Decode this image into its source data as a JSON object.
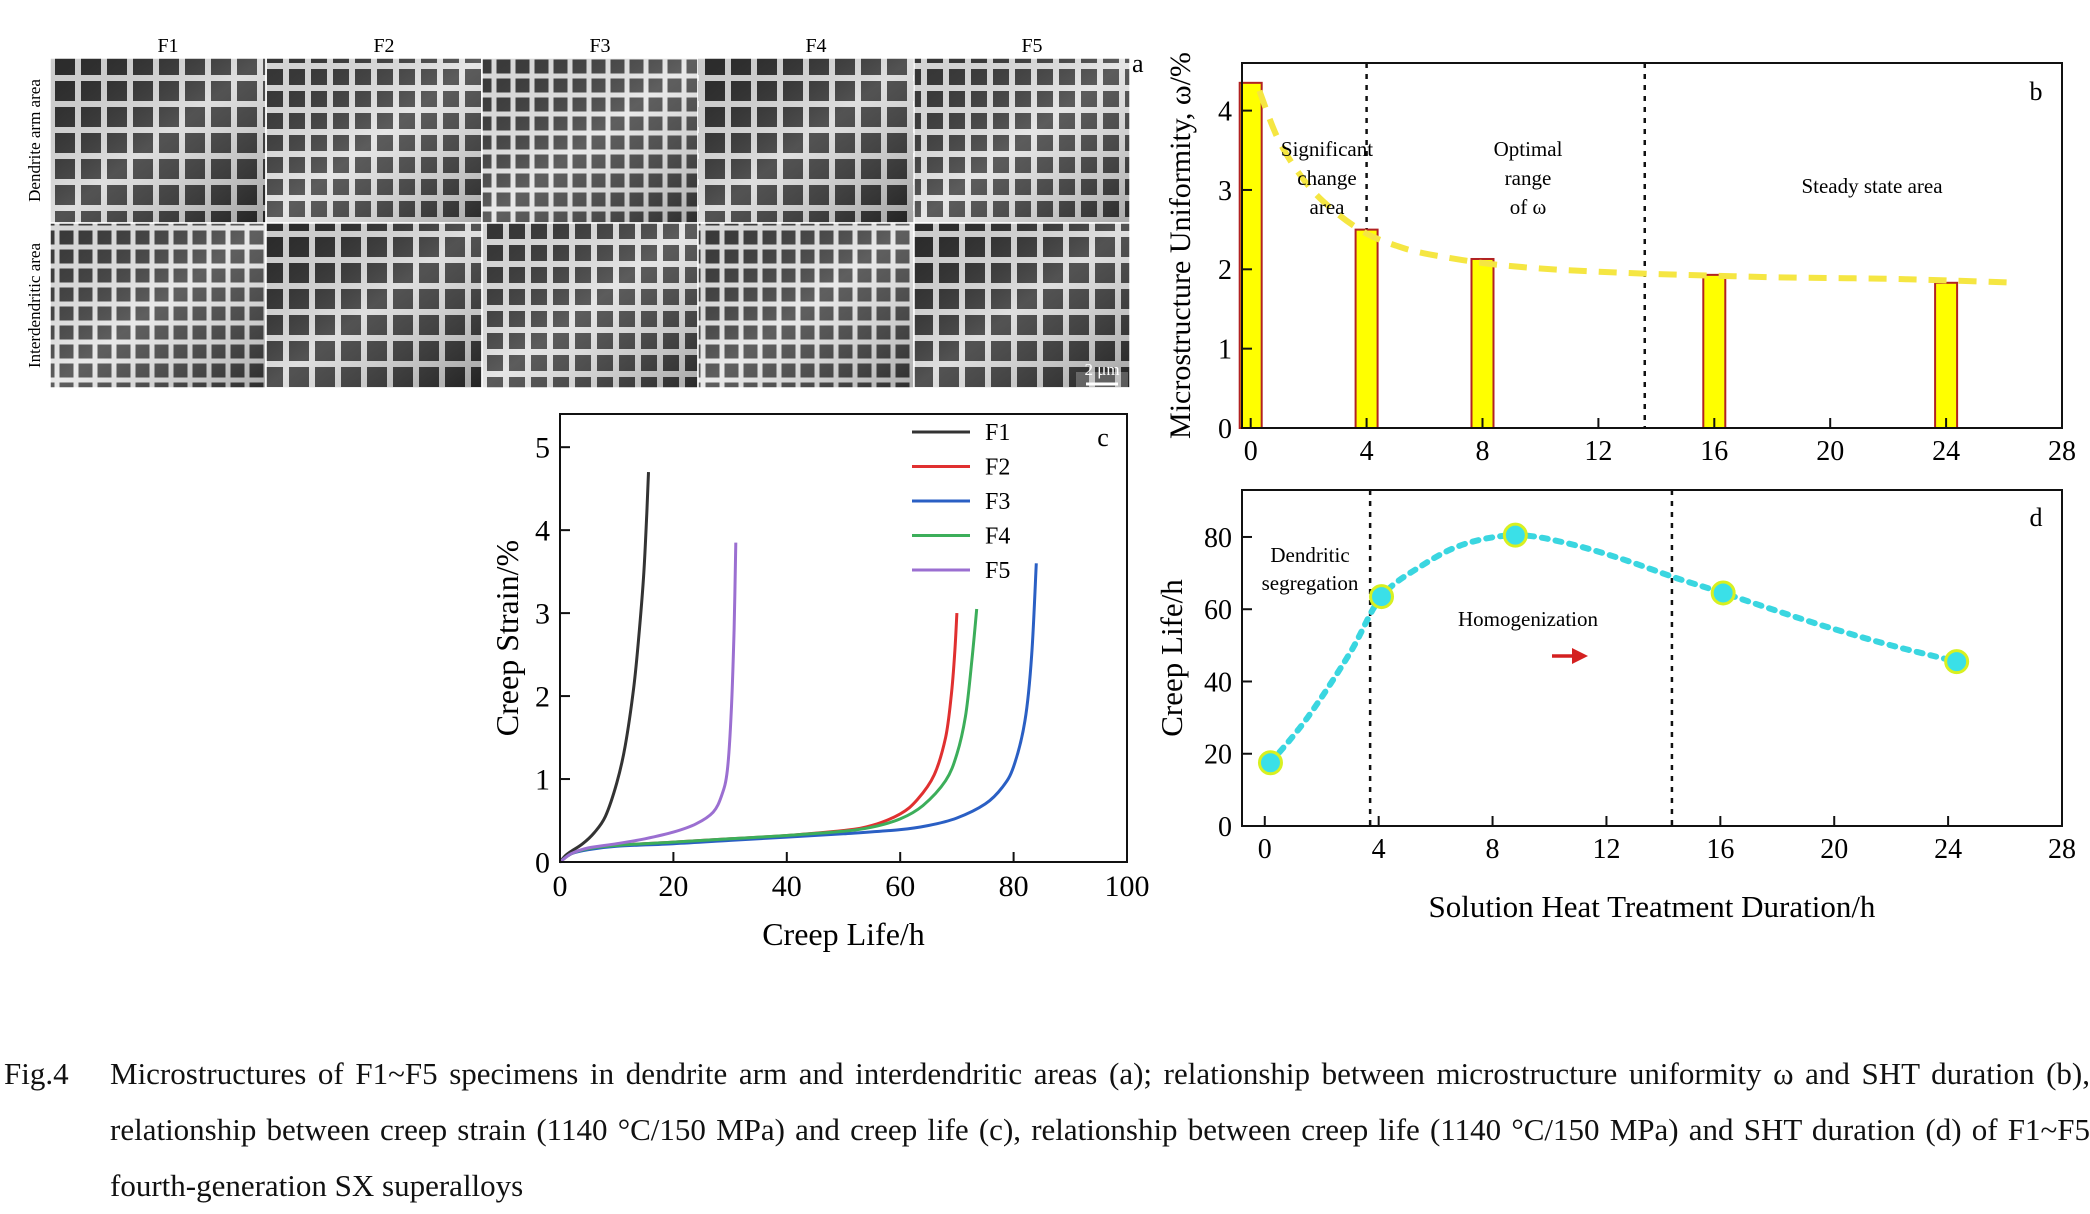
{
  "panel_a": {
    "label": "a",
    "columns": [
      "F1",
      "F2",
      "F3",
      "F4",
      "F5"
    ],
    "rows": [
      "Dendrite arm area",
      "Interdendritic area"
    ],
    "scale_bar": "2 μm"
  },
  "chart_data": [
    {
      "panel": "b",
      "type": "bar",
      "x": [
        0,
        4,
        8,
        16,
        24
      ],
      "values": [
        4.35,
        2.5,
        2.13,
        1.93,
        1.83
      ],
      "ylabel": "Microstructure Uniformity, ω/%",
      "xlabel": "",
      "xlim": [
        -0.3,
        28
      ],
      "ylim": [
        0,
        4.6
      ],
      "xticks": [
        0,
        4,
        8,
        12,
        16,
        20,
        24,
        28
      ],
      "yticks": [
        0,
        1,
        2,
        3,
        4
      ],
      "fit_curve": {
        "style": "dashed",
        "color": "#f5e642",
        "x": [
          0.3,
          1,
          2,
          3,
          4,
          5,
          6,
          8,
          10,
          12,
          14,
          16,
          18,
          20,
          22,
          24,
          26.5
        ],
        "y": [
          4.25,
          3.6,
          3.05,
          2.7,
          2.45,
          2.3,
          2.2,
          2.08,
          2.01,
          1.97,
          1.94,
          1.92,
          1.9,
          1.89,
          1.88,
          1.86,
          1.83
        ]
      },
      "vlines": [
        4,
        13.6
      ],
      "region_labels": [
        {
          "lines": [
            "Significant",
            "change",
            "area"
          ]
        },
        {
          "lines": [
            "Optimal",
            "range",
            "of ω"
          ]
        },
        {
          "lines": [
            "Steady state area"
          ]
        }
      ],
      "bar_color": "#ffff00",
      "bar_edge": "#b22222"
    },
    {
      "panel": "c",
      "type": "line",
      "xlabel": "Creep Life/h",
      "ylabel": "Creep Strain/%",
      "xlim": [
        0,
        100
      ],
      "ylim": [
        0,
        5.4
      ],
      "xticks": [
        0,
        20,
        40,
        60,
        80,
        100
      ],
      "yticks": [
        0,
        1,
        2,
        3,
        4,
        5
      ],
      "legend_position": "top-right",
      "series": [
        {
          "name": "F1",
          "color": "#333333",
          "x": [
            0,
            1,
            2,
            4,
            6,
            8,
            10,
            11.5,
            13,
            14,
            14.8,
            15.3,
            15.6
          ],
          "y": [
            0,
            0.08,
            0.13,
            0.22,
            0.35,
            0.55,
            0.95,
            1.4,
            2.1,
            2.8,
            3.5,
            4.2,
            4.7
          ]
        },
        {
          "name": "F2",
          "color": "#e03030",
          "x": [
            0,
            2,
            5,
            10,
            20,
            30,
            40,
            50,
            55,
            60,
            63,
            66,
            68,
            69,
            69.6,
            70
          ],
          "y": [
            0,
            0.1,
            0.16,
            0.2,
            0.24,
            0.28,
            0.32,
            0.38,
            0.44,
            0.58,
            0.75,
            1.05,
            1.5,
            2.0,
            2.5,
            3.0
          ]
        },
        {
          "name": "F3",
          "color": "#2a5fc4",
          "x": [
            0,
            2,
            5,
            10,
            20,
            30,
            40,
            50,
            60,
            65,
            70,
            75,
            78,
            80,
            82,
            83.2,
            84
          ],
          "y": [
            0,
            0.1,
            0.15,
            0.19,
            0.22,
            0.26,
            0.3,
            0.34,
            0.39,
            0.44,
            0.53,
            0.7,
            0.9,
            1.15,
            1.7,
            2.5,
            3.6
          ]
        },
        {
          "name": "F4",
          "color": "#3cae5a",
          "x": [
            0,
            2,
            5,
            10,
            20,
            30,
            40,
            50,
            55,
            60,
            64,
            68,
            70,
            71.5,
            72.6,
            73.5
          ],
          "y": [
            0,
            0.1,
            0.16,
            0.2,
            0.24,
            0.28,
            0.32,
            0.37,
            0.42,
            0.52,
            0.68,
            0.98,
            1.3,
            1.75,
            2.4,
            3.05
          ]
        },
        {
          "name": "F5",
          "color": "#9b6fd1",
          "x": [
            0,
            2,
            5,
            10,
            15,
            20,
            24,
            27,
            28.5,
            29.5,
            30.2,
            30.7,
            31
          ],
          "y": [
            0,
            0.1,
            0.17,
            0.22,
            0.28,
            0.36,
            0.46,
            0.6,
            0.8,
            1.1,
            1.8,
            2.8,
            3.85
          ]
        }
      ]
    },
    {
      "panel": "d",
      "type": "scatter",
      "xlabel": "Solution Heat Treatment Duration/h",
      "ylabel": "Creep Life/h",
      "xlim": [
        -0.8,
        28
      ],
      "ylim": [
        0,
        93
      ],
      "xticks": [
        0,
        4,
        8,
        12,
        16,
        20,
        24,
        28
      ],
      "yticks": [
        0,
        20,
        40,
        60,
        80
      ],
      "x": [
        0.2,
        4.1,
        8.8,
        16.1,
        24.3
      ],
      "y": [
        17.5,
        63.5,
        80.5,
        64.5,
        45.5
      ],
      "fit_curve": {
        "style": "dotted",
        "color": "#3ad6e0",
        "x": [
          0.2,
          1.5,
          3,
          4.1,
          5.5,
          7,
          8.8,
          10.5,
          12.5,
          14.5,
          16.1,
          18,
          20,
          22,
          24.3
        ],
        "y": [
          17.5,
          30,
          48,
          63.5,
          72,
          78,
          80.5,
          78.5,
          74,
          68.5,
          64.5,
          59.5,
          54.5,
          50,
          45.5
        ]
      },
      "vlines": [
        3.7,
        14.3
      ],
      "annotations": [
        {
          "lines": [
            "Dendritic",
            "segregation"
          ]
        },
        {
          "lines": [
            "Homogenization"
          ]
        }
      ],
      "arrow_color": "#d42020"
    }
  ],
  "caption": {
    "label": "Fig.4",
    "text": "Microstructures of F1~F5 specimens in dendrite arm and interdendritic areas (a); relationship between microstructure uniformity ω and SHT duration (b), relationship between creep strain (1140 °C/150 MPa) and creep life (c), relationship between creep life (1140 °C/150 MPa) and SHT duration (d) of F1~F5 fourth-generation SX superalloys"
  }
}
